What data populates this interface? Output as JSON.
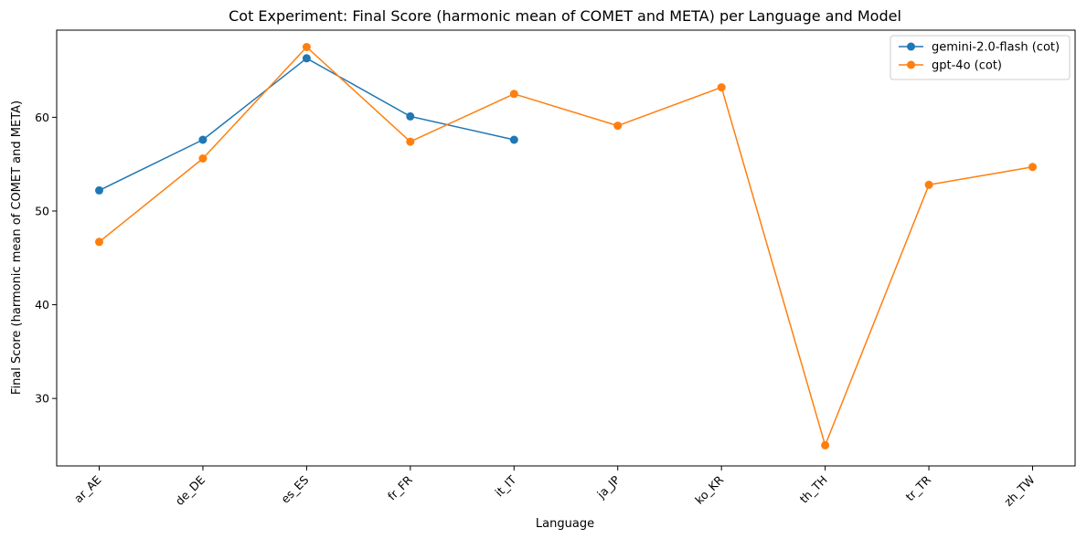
{
  "chart_data": {
    "type": "line",
    "title": "Cot Experiment: Final Score (harmonic mean of COMET and META) per Language and Model",
    "xlabel": "Language",
    "ylabel": "Final Score (harmonic mean of COMET and META)",
    "categories": [
      "ar_AE",
      "de_DE",
      "es_ES",
      "fr_FR",
      "it_IT",
      "ja_JP",
      "ko_KR",
      "th_TH",
      "tr_TR",
      "zh_TW"
    ],
    "yticks": [
      30,
      40,
      50,
      60
    ],
    "ylim": [
      22.8,
      69.3
    ],
    "grid": false,
    "legend_position": "top-right",
    "series": [
      {
        "name": "gemini-2.0-flash (cot)",
        "color": "#1f77b4",
        "values": [
          52.2,
          57.6,
          66.3,
          60.1,
          57.6,
          null,
          null,
          null,
          null,
          null
        ]
      },
      {
        "name": "gpt-4o (cot)",
        "color": "#ff7f0e",
        "values": [
          46.7,
          55.6,
          67.5,
          57.4,
          62.5,
          59.1,
          63.2,
          25.0,
          52.8,
          54.7
        ]
      }
    ]
  }
}
